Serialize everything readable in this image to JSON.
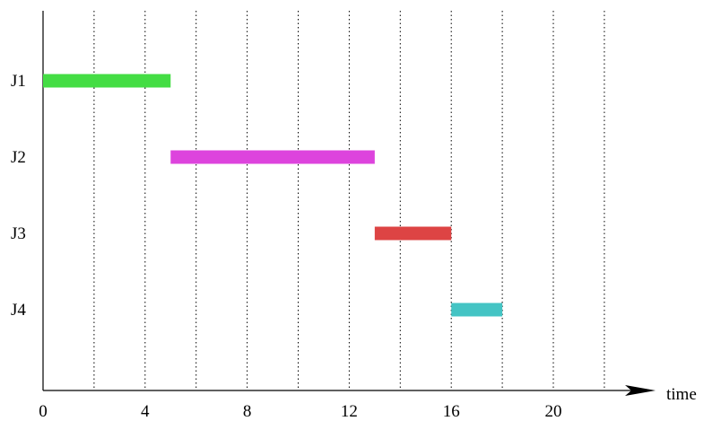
{
  "chart_data": {
    "type": "gantt",
    "title": "",
    "xlabel": "time",
    "ylabel": "",
    "xlim": [
      0,
      22
    ],
    "grid": "vertical dotted lines every 2 time units",
    "x_tick_labels": [
      0,
      4,
      8,
      12,
      16,
      20
    ],
    "jobs": [
      {
        "label": "J1",
        "start": 0,
        "end": 5,
        "color": "#44dd44"
      },
      {
        "label": "J2",
        "start": 5,
        "end": 13,
        "color": "#dd44dd"
      },
      {
        "label": "J3",
        "start": 13,
        "end": 16,
        "color": "#dd4444"
      },
      {
        "label": "J4",
        "start": 16,
        "end": 18,
        "color": "#44c4c4"
      }
    ]
  }
}
